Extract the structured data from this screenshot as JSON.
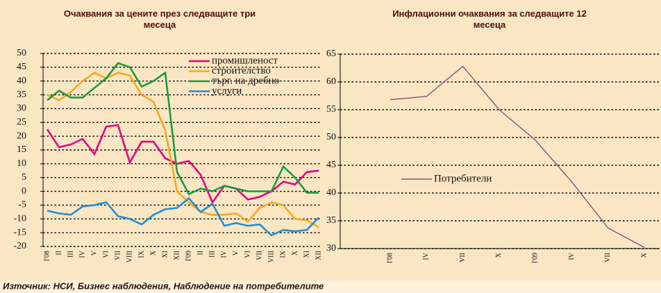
{
  "chart_data": [
    {
      "type": "line",
      "title": "Очаквания за цените през следващите три месеца",
      "categories": [
        "I'08",
        "II",
        "III",
        "IV",
        "V",
        "VI",
        "VII",
        "VIII",
        "IX",
        "X",
        "XI",
        "XII",
        "I'09",
        "II",
        "III",
        "IV",
        "V",
        "VI",
        "VII",
        "VIII",
        "IX",
        "X",
        "XI",
        "XII"
      ],
      "series": [
        {
          "name": "промишленост",
          "color": "#e6007e",
          "values": [
            22.5,
            16,
            17,
            19,
            13.5,
            23.5,
            24,
            10.5,
            18,
            18,
            12,
            10,
            11,
            6,
            -4,
            2,
            1,
            -3,
            -2,
            0,
            3.5,
            2.5,
            7,
            7.5
          ]
        },
        {
          "name": "строителство",
          "color": "#f7a81b",
          "values": [
            35,
            33,
            36,
            40,
            43,
            41,
            43,
            42,
            35,
            32.5,
            22,
            0,
            -4,
            -7.5,
            -8.5,
            -8.5,
            -8,
            -11,
            -6,
            -4,
            -5,
            -10,
            -10.5,
            -13
          ]
        },
        {
          "name": "търг. на дребно",
          "color": "#1a9b3c",
          "values": [
            33,
            36.5,
            34,
            34,
            37.5,
            41,
            46.5,
            45,
            38,
            40,
            43,
            7,
            -1,
            1,
            0,
            2,
            1,
            0,
            0,
            0,
            9,
            5,
            -0.5,
            -0.5
          ]
        },
        {
          "name": "услуги",
          "color": "#1e8fd6",
          "values": [
            -7,
            -8,
            -8.5,
            -5.5,
            -5,
            -4,
            -9,
            -10,
            -12,
            -8.5,
            -6.5,
            -6,
            -2.5,
            -7.5,
            -4.5,
            -12.5,
            -11.5,
            -12.5,
            -12,
            -16,
            -14,
            -14.5,
            -14,
            -9.5
          ]
        }
      ],
      "ylim": [
        -20,
        50
      ],
      "yticks": [
        -20,
        -15,
        -10,
        -5,
        0,
        5,
        10,
        15,
        20,
        25,
        30,
        35,
        40,
        45,
        50
      ],
      "grid": true,
      "legend": "upper-right"
    },
    {
      "type": "line",
      "title": "Инфлационни очаквания за следващите 12 месеца",
      "categories": [
        "I'08",
        "IV",
        "VII",
        "X",
        "I'09",
        "IV",
        "VII",
        "X"
      ],
      "series": [
        {
          "name": "Потребители",
          "color": "#8e4f7e",
          "values": [
            56.8,
            57.4,
            62.8,
            55,
            49.5,
            42,
            33.7,
            30.2
          ]
        }
      ],
      "ylim": [
        30,
        65
      ],
      "yticks": [
        30,
        35,
        40,
        45,
        50,
        55,
        60,
        65
      ],
      "grid": true,
      "legend": "center-left"
    }
  ],
  "source": "Източник: НСИ, Бизнес наблюдения, Наблюдение на потребителите"
}
